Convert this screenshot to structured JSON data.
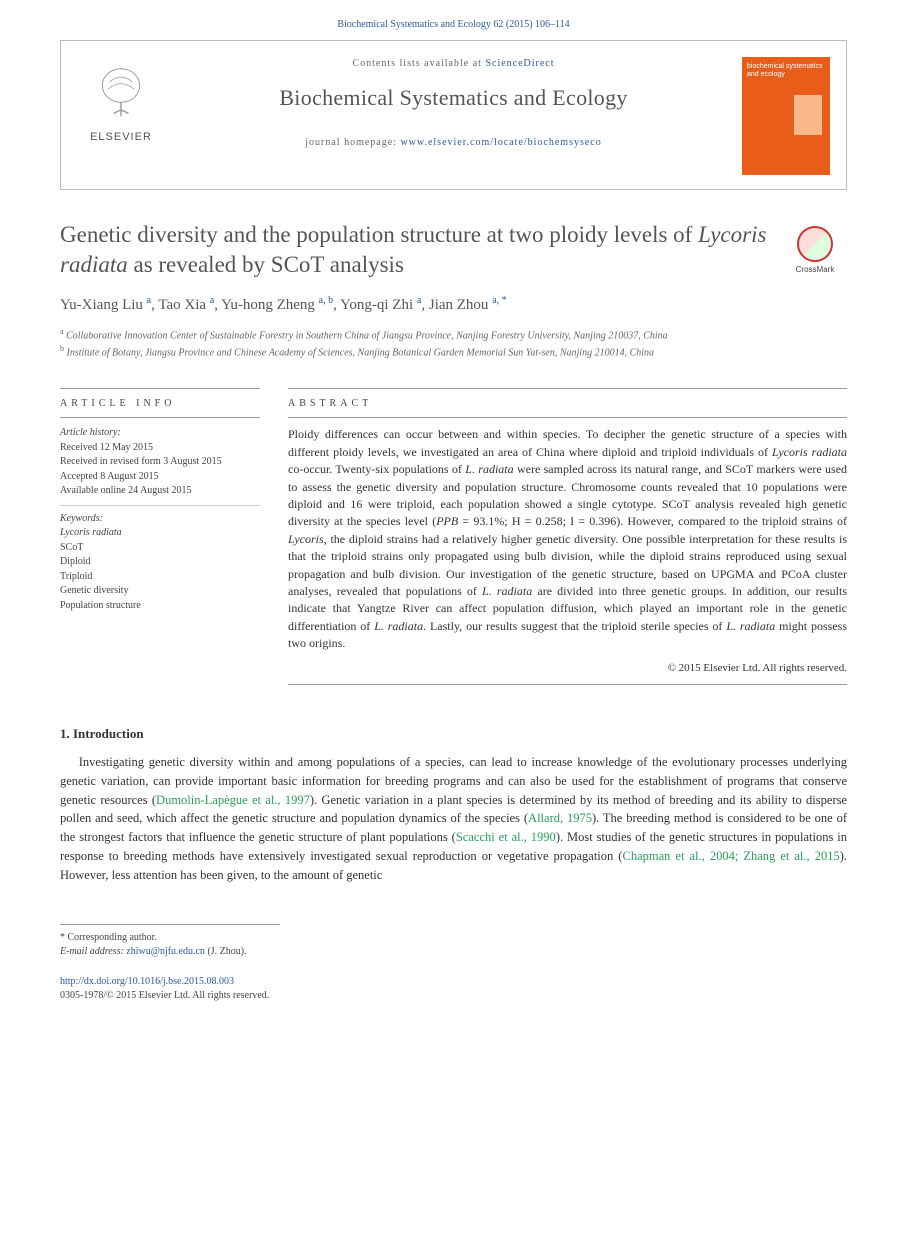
{
  "header": {
    "citation": "Biochemical Systematics and Ecology 62 (2015) 106–114"
  },
  "masthead": {
    "contents_prefix": "Contents lists available at ",
    "contents_link": "ScienceDirect",
    "journal_title": "Biochemical Systematics and Ecology",
    "homepage_prefix": "journal homepage: ",
    "homepage_url": "www.elsevier.com/locate/biochemsyseco",
    "publisher": "ELSEVIER",
    "cover_text": "biochemical systematics and ecology"
  },
  "article": {
    "title_html": "Genetic diversity and the population structure at two ploidy levels of <em>Lycoris radiata</em> as revealed by SCoT analysis",
    "crossmark": "CrossMark",
    "authors_html": "Yu-Xiang Liu <sup>a</sup>, Tao Xia <sup>a</sup>, Yu-hong Zheng <sup>a, b</sup>, Yong-qi Zhi <sup>a</sup>, Jian Zhou <sup>a, <span class='corr'>*</span></sup>",
    "affiliations": {
      "a": "Collaborative Innovation Center of Sustainable Forestry in Southern China of Jiangsu Province, Nanjing Forestry University, Nanjing 210037, China",
      "b": "Institute of Botany, Jiangsu Province and Chinese Academy of Sciences, Nanjing Botanical Garden Memorial Sun Yat-sen, Nanjing 210014, China"
    }
  },
  "info": {
    "heading": "ARTICLE INFO",
    "history_label": "Article history:",
    "history": [
      "Received 12 May 2015",
      "Received in revised form 3 August 2015",
      "Accepted 8 August 2015",
      "Available online 24 August 2015"
    ],
    "keywords_label": "Keywords:",
    "keywords": [
      "Lycoris radiata",
      "SCoT",
      "Diploid",
      "Triploid",
      "Genetic diversity",
      "Population structure"
    ]
  },
  "abstract": {
    "heading": "ABSTRACT",
    "text_html": "Ploidy differences can occur between and within species. To decipher the genetic structure of a species with different ploidy levels, we investigated an area of China where diploid and triploid individuals of <em>Lycoris radiata</em> co-occur. Twenty-six populations of <em>L. radiata</em> were sampled across its natural range, and SCoT markers were used to assess the genetic diversity and population structure. Chromosome counts revealed that 10 populations were diploid and 16 were triploid, each population showed a single cytotype. SCoT analysis revealed high genetic diversity at the species level (<em>PPB</em> = 93.1%; H = 0.258; I = 0.396). However, compared to the triploid strains of <em>Lycoris</em>, the diploid strains had a relatively higher genetic diversity. One possible interpretation for these results is that the triploid strains only propagated using bulb division, while the diploid strains reproduced using sexual propagation and bulb division. Our investigation of the genetic structure, based on UPGMA and PCoA cluster analyses, revealed that populations of <em>L. radiata</em> are divided into three genetic groups. In addition, our results indicate that Yangtze River can affect population diffusion, which played an important role in the genetic differentiation of <em>L. radiata</em>. Lastly, our results suggest that the triploid sterile species of <em>L. radiata</em> might possess two origins.",
    "copyright": "© 2015 Elsevier Ltd. All rights reserved."
  },
  "intro": {
    "heading": "1. Introduction",
    "para_html": "Investigating genetic diversity within and among populations of a species, can lead to increase knowledge of the evolutionary processes underlying genetic variation, can provide important basic information for breeding programs and can also be used for the establishment of programs that conserve genetic resources (<a class='cite' href='#'>Dumolin-Lapègue et al., 1997</a>). Genetic variation in a plant species is determined by its method of breeding and its ability to disperse pollen and seed, which affect the genetic structure and population dynamics of the species (<a class='cite' href='#'>Allard, 1975</a>). The breeding method is considered to be one of the strongest factors that influence the genetic structure of plant populations (<a class='cite' href='#'>Scacchi et al., 1990</a>). Most studies of the genetic structures in populations in response to breeding methods have extensively investigated sexual reproduction or vegetative propagation (<a class='cite' href='#'>Chapman et al., 2004; Zhang et al., 2015</a>). However, less attention has been given, to the amount of genetic"
  },
  "footer": {
    "corr_label": "* Corresponding author.",
    "email_label": "E-mail address:",
    "email": "zhiwu@njfu.edu.cn",
    "email_name": "(J. Zhou).",
    "doi": "http://dx.doi.org/10.1016/j.bse.2015.08.003",
    "issn_line": "0305-1978/© 2015 Elsevier Ltd. All rights reserved."
  }
}
